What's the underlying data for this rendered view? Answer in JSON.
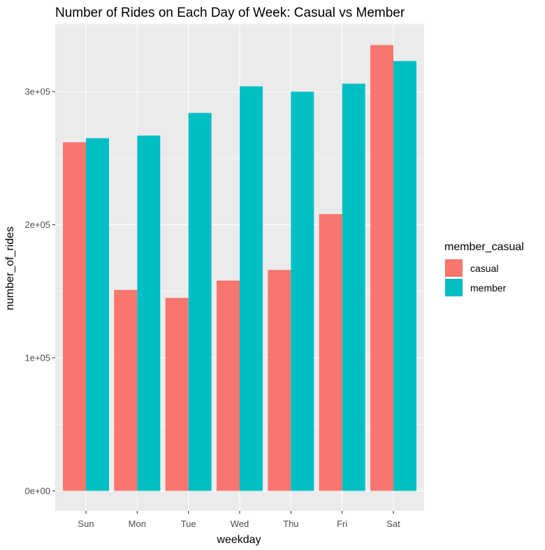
{
  "chart_data": {
    "type": "bar",
    "title": "Number of Rides on Each Day of Week: Casual vs Member",
    "xlabel": "weekday",
    "ylabel": "number_of_rides",
    "categories": [
      "Sun",
      "Mon",
      "Tue",
      "Wed",
      "Thu",
      "Fri",
      "Sat"
    ],
    "series": [
      {
        "name": "casual",
        "color": "#F8766D",
        "values": [
          262000,
          151000,
          145000,
          158000,
          166000,
          208000,
          335000
        ]
      },
      {
        "name": "member",
        "color": "#00BFC4",
        "values": [
          265000,
          267000,
          284000,
          304000,
          300000,
          306000,
          323000
        ]
      }
    ],
    "ylim": [
      -15000,
      351000
    ],
    "yticks": [
      0,
      100000,
      200000,
      300000
    ],
    "ytick_labels": [
      "0e+00",
      "1e+05",
      "2e+05",
      "3e+05"
    ],
    "legend": {
      "title": "member_casual",
      "position": "right"
    },
    "grid": true,
    "background": "#EBEBEB"
  }
}
